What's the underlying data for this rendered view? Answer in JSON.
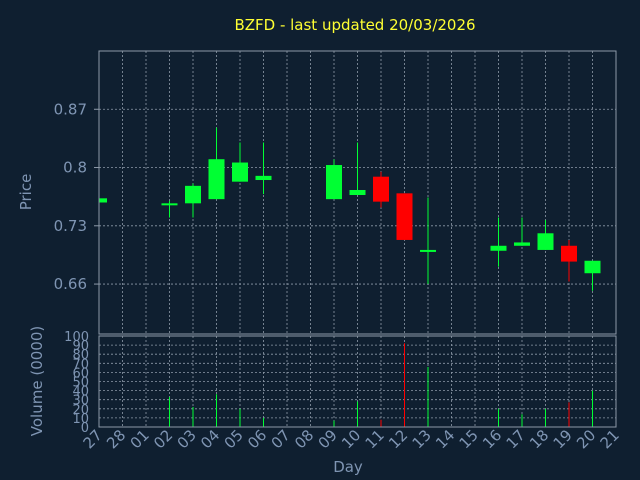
{
  "chart_data": {
    "type": "candlestick",
    "title": "BZFD - last updated 20/03/2026",
    "price_panel": {
      "ylabel": "Price",
      "yticks": [
        "0.87",
        "0.8",
        "0.73",
        "0.66"
      ],
      "ylim": [
        0.6,
        0.94
      ]
    },
    "volume_panel": {
      "ylabel": "Volume (0000)",
      "yticks": [
        "100",
        "90",
        "80",
        "70",
        "60",
        "50",
        "40",
        "30",
        "20",
        "10",
        "0"
      ],
      "ylim": [
        0,
        100
      ]
    },
    "xlabel": "Day",
    "x_ticks": [
      "27",
      "28",
      "01",
      "02",
      "03",
      "04",
      "05",
      "06",
      "07",
      "08",
      "09",
      "10",
      "11",
      "12",
      "13",
      "14",
      "15",
      "16",
      "17",
      "18",
      "19",
      "20",
      "21"
    ],
    "candles": [
      {
        "day": "27",
        "open": 0.758,
        "close": 0.763,
        "high": 0.763,
        "low": 0.758,
        "volume": 0
      },
      {
        "day": "02",
        "open": 0.757,
        "close": 0.757,
        "high": 0.76,
        "low": 0.74,
        "volume": 33
      },
      {
        "day": "03",
        "open": 0.757,
        "close": 0.778,
        "high": 0.781,
        "low": 0.74,
        "volume": 22
      },
      {
        "day": "04",
        "open": 0.762,
        "close": 0.81,
        "high": 0.848,
        "low": 0.762,
        "volume": 36
      },
      {
        "day": "05",
        "open": 0.783,
        "close": 0.806,
        "high": 0.83,
        "low": 0.783,
        "volume": 20
      },
      {
        "day": "06",
        "open": 0.785,
        "close": 0.79,
        "high": 0.83,
        "low": 0.768,
        "volume": 10
      },
      {
        "day": "09",
        "open": 0.762,
        "close": 0.803,
        "high": 0.81,
        "low": 0.762,
        "volume": 7
      },
      {
        "day": "10",
        "open": 0.767,
        "close": 0.773,
        "high": 0.83,
        "low": 0.767,
        "volume": 28
      },
      {
        "day": "11",
        "open": 0.789,
        "close": 0.759,
        "high": 0.795,
        "low": 0.752,
        "volume": 8
      },
      {
        "day": "12",
        "open": 0.769,
        "close": 0.713,
        "high": 0.769,
        "low": 0.713,
        "volume": 92
      },
      {
        "day": "13",
        "open": 0.7,
        "close": 0.701,
        "high": 0.764,
        "low": 0.66,
        "volume": 66
      },
      {
        "day": "16",
        "open": 0.7,
        "close": 0.706,
        "high": 0.74,
        "low": 0.681,
        "volume": 20
      },
      {
        "day": "17",
        "open": 0.706,
        "close": 0.71,
        "high": 0.74,
        "low": 0.706,
        "volume": 14
      },
      {
        "day": "18",
        "open": 0.701,
        "close": 0.721,
        "high": 0.737,
        "low": 0.701,
        "volume": 20
      },
      {
        "day": "19",
        "open": 0.706,
        "close": 0.687,
        "high": 0.713,
        "low": 0.663,
        "volume": 27
      },
      {
        "day": "20",
        "open": 0.673,
        "close": 0.688,
        "high": 0.688,
        "low": 0.652,
        "volume": 40
      }
    ],
    "colors": {
      "up": "#00ff33",
      "down": "#ff0000",
      "background": "#0f1f30",
      "text": "#7f95b3",
      "title": "#ffff33",
      "grid": "#8e9aa9"
    }
  }
}
